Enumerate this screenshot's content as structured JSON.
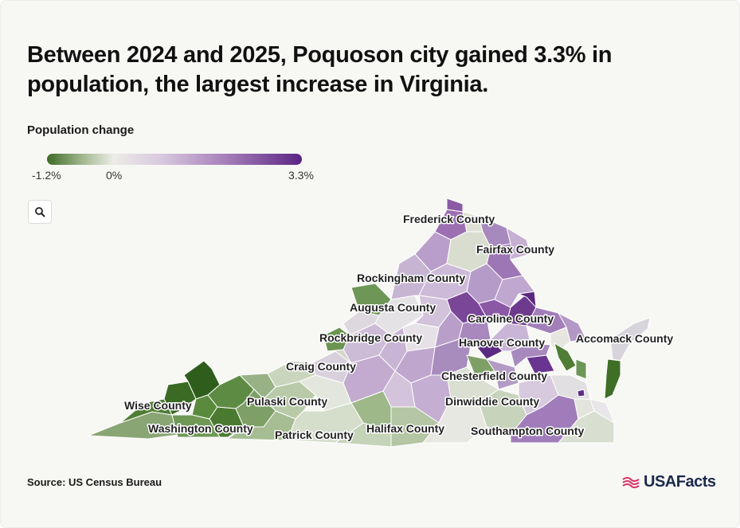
{
  "title": "Between 2024 and 2025, Poquoson city gained 3.3% in population, the largest increase in Virginia.",
  "legend": {
    "title": "Population change",
    "min_label": "-1.2%",
    "zero_label": "0%",
    "max_label": "3.3%",
    "min_value": -1.2,
    "max_value": 3.3,
    "colors": {
      "low": "#3e6b26",
      "mid": "#ecece6",
      "high": "#5b2483"
    }
  },
  "zoom": {
    "icon": "search-icon"
  },
  "map": {
    "region": "Virginia",
    "county_labels": [
      "Frederick County",
      "Fairfax County",
      "Rockingham County",
      "Augusta County",
      "Caroline County",
      "Rockbridge County",
      "Accomack County",
      "Hanover County",
      "Craig County",
      "Chesterfield County",
      "Pulaski County",
      "Wise County",
      "Dinwiddie County",
      "Washington County",
      "Halifax County",
      "Southampton County",
      "Patrick County"
    ]
  },
  "source": "Source: US Census Bureau",
  "brand": {
    "name": "USAFacts",
    "icon": "usafacts-flag-icon"
  }
}
